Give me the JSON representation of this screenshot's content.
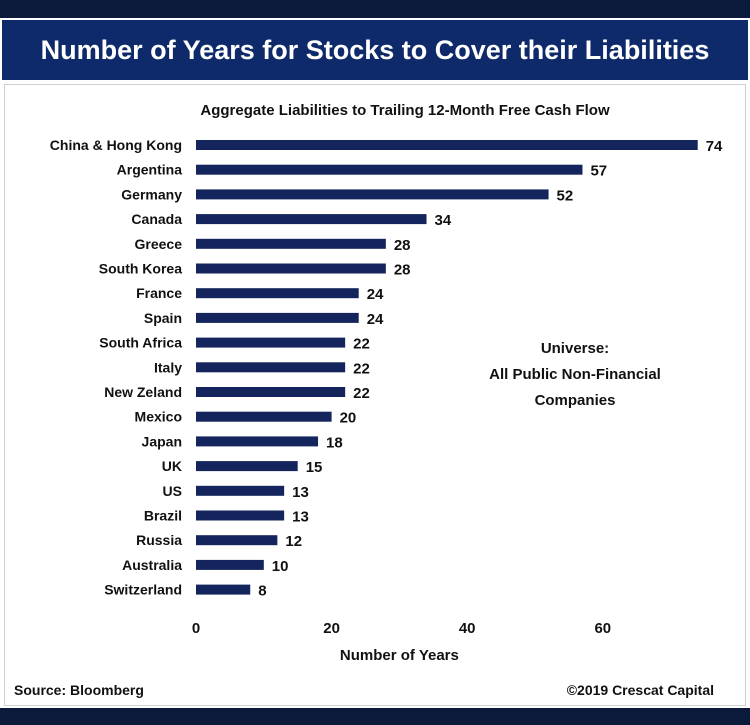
{
  "header": {
    "title": "Number of Years for Stocks to Cover their Liabilities"
  },
  "footer": {
    "source": "Source: Bloomberg",
    "copyright": "©2019 Crescat Capital"
  },
  "colors": {
    "bar": "#14245c",
    "banner": "#0f2a6b",
    "text": "#111111"
  },
  "chart_data": {
    "type": "bar",
    "orientation": "horizontal",
    "subtitle": "Aggregate Liabilities to Trailing 12-Month Free Cash Flow",
    "xlabel": "Number of Years",
    "xlim": [
      0,
      74
    ],
    "xticks": [
      0,
      20,
      40,
      60
    ],
    "grid": false,
    "categories": [
      "China & Hong Kong",
      "Argentina",
      "Germany",
      "Canada",
      "Greece",
      "South Korea",
      "France",
      "Spain",
      "South Africa",
      "Italy",
      "New Zeland",
      "Mexico",
      "Japan",
      "UK",
      "US",
      "Brazil",
      "Russia",
      "Australia",
      "Switzerland"
    ],
    "values": [
      74,
      57,
      52,
      34,
      28,
      28,
      24,
      24,
      22,
      22,
      22,
      20,
      18,
      15,
      13,
      13,
      12,
      10,
      8
    ],
    "annotation": [
      "Universe:",
      "All Public Non-Financial",
      "Companies"
    ]
  }
}
